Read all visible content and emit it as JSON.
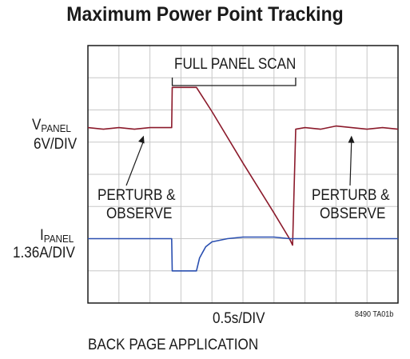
{
  "chart_data": {
    "type": "line",
    "title": "Maximum Power Point Tracking",
    "time_division": "0.5s/DIV",
    "xlim": [
      0,
      10
    ],
    "grid_divisions": {
      "x": 10,
      "y": 8
    },
    "grid": true,
    "series": [
      {
        "name": "VPANEL",
        "label_main": "V",
        "label_sub": "PANEL",
        "scale": "6V/DIV",
        "color": "#8b1a2b",
        "x": [
          0,
          0.5,
          1.0,
          1.5,
          2.0,
          2.7,
          2.72,
          3.0,
          3.4,
          3.5,
          4.0,
          5.0,
          6.0,
          6.5,
          6.6,
          6.7,
          7.0,
          7.5,
          8.0,
          8.5,
          9.0,
          9.5,
          10.0
        ],
        "y": [
          5.45,
          5.4,
          5.45,
          5.4,
          5.45,
          5.45,
          6.7,
          6.7,
          6.7,
          6.7,
          5.95,
          4.35,
          2.8,
          2.0,
          1.8,
          5.4,
          5.45,
          5.4,
          5.5,
          5.45,
          5.4,
          5.45,
          5.4
        ]
      },
      {
        "name": "IPANEL",
        "label_main": "I",
        "label_sub": "PANEL",
        "scale": "1.36A/DIV",
        "color": "#2a4fb0",
        "x": [
          0,
          1.0,
          2.0,
          2.7,
          2.72,
          3.5,
          3.6,
          3.8,
          4.0,
          4.5,
          5.0,
          6.0,
          6.5,
          6.7,
          7.5,
          8.5,
          10.0
        ],
        "y": [
          2.0,
          2.0,
          2.0,
          2.0,
          1.0,
          1.0,
          1.4,
          1.75,
          1.9,
          2.0,
          2.05,
          2.05,
          2.0,
          2.0,
          2.0,
          2.0,
          2.0
        ]
      }
    ],
    "annotations": [
      {
        "text": "FULL PANEL SCAN",
        "x_start": 2.72,
        "x_end": 6.7,
        "type": "bracket"
      },
      {
        "text": "PERTURB &",
        "text2": "OBSERVE",
        "arrow_to": [
          1.8,
          5.35
        ]
      },
      {
        "text": "PERTURB &",
        "text2": "OBSERVE",
        "arrow_to": [
          8.5,
          5.35
        ]
      }
    ],
    "figure_code": "8490 TA01b"
  },
  "caption": "BACK PAGE APPLICATION"
}
